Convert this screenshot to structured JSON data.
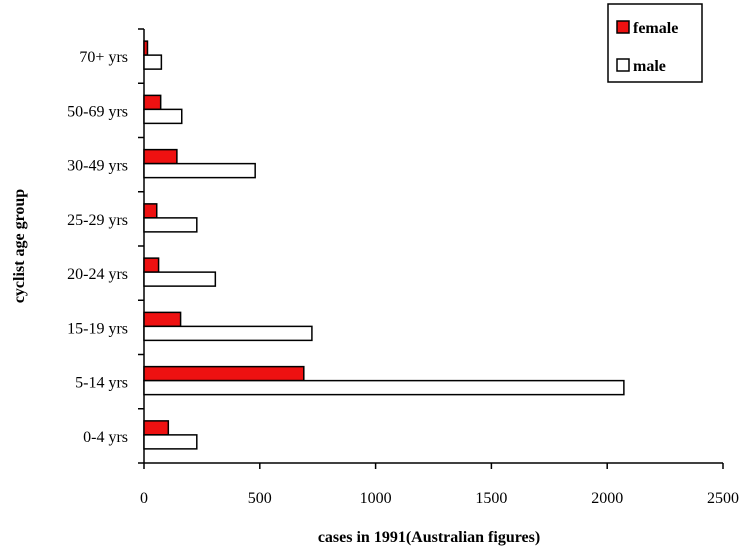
{
  "chart_data": {
    "type": "bar",
    "orientation": "horizontal",
    "categories": [
      "0-4 yrs",
      "5-14 yrs",
      "15-19 yrs",
      "20-24 yrs",
      "25-29 yrs",
      "30-49 yrs",
      "50-69 yrs",
      "70+ yrs"
    ],
    "series": [
      {
        "name": "female",
        "color": "#ee1111",
        "values": [
          105,
          690,
          158,
          63,
          55,
          142,
          72,
          15
        ]
      },
      {
        "name": "male",
        "color": "#ffffff",
        "values": [
          228,
          2072,
          725,
          308,
          228,
          480,
          163,
          75
        ]
      }
    ],
    "xlabel": "cases in 1991(Australian figures)",
    "ylabel": "cyclist age group",
    "xlim": [
      0,
      2500
    ],
    "xticks": [
      0,
      500,
      1000,
      1500,
      2000,
      2500
    ],
    "grid": false,
    "legend_position": "top-right"
  }
}
